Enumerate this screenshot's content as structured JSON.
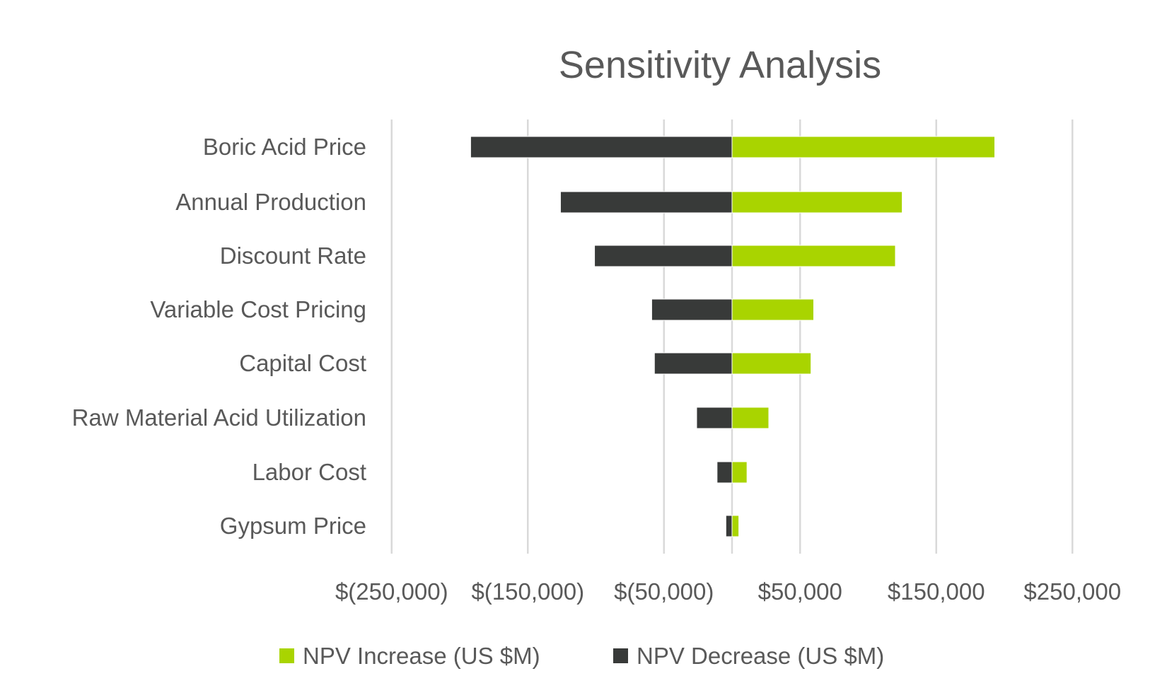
{
  "chart_data": {
    "type": "bar",
    "orientation": "horizontal",
    "style": "tornado",
    "title": "Sensitivity Analysis",
    "categories": [
      "Boric Acid Price",
      "Annual Production",
      "Discount Rate",
      "Variable Cost Pricing",
      "Capital Cost",
      "Raw Material Acid Utilization",
      "Labor Cost ",
      "Gypsum Price"
    ],
    "series": [
      {
        "name": "NPV Increase (US $M)",
        "color": "#a9d400",
        "values": [
          193000,
          125000,
          120000,
          60000,
          58000,
          27000,
          11000,
          5000
        ]
      },
      {
        "name": "NPV Decrease (US $M)",
        "color": "#383a39",
        "values": [
          -192000,
          -126000,
          -101000,
          -59000,
          -57000,
          -26000,
          -11000,
          -4500
        ]
      }
    ],
    "xlim": [
      -250000,
      250000
    ],
    "x_ticks": [
      -250000,
      -150000,
      -50000,
      50000,
      150000,
      250000
    ],
    "x_tick_labels": [
      "$(250,000)",
      "$(150,000)",
      "$(50,000)",
      "$50,000",
      "$150,000",
      "$250,000"
    ],
    "grid": "vertical",
    "legend_position": "bottom",
    "xlabel": "",
    "ylabel": ""
  }
}
